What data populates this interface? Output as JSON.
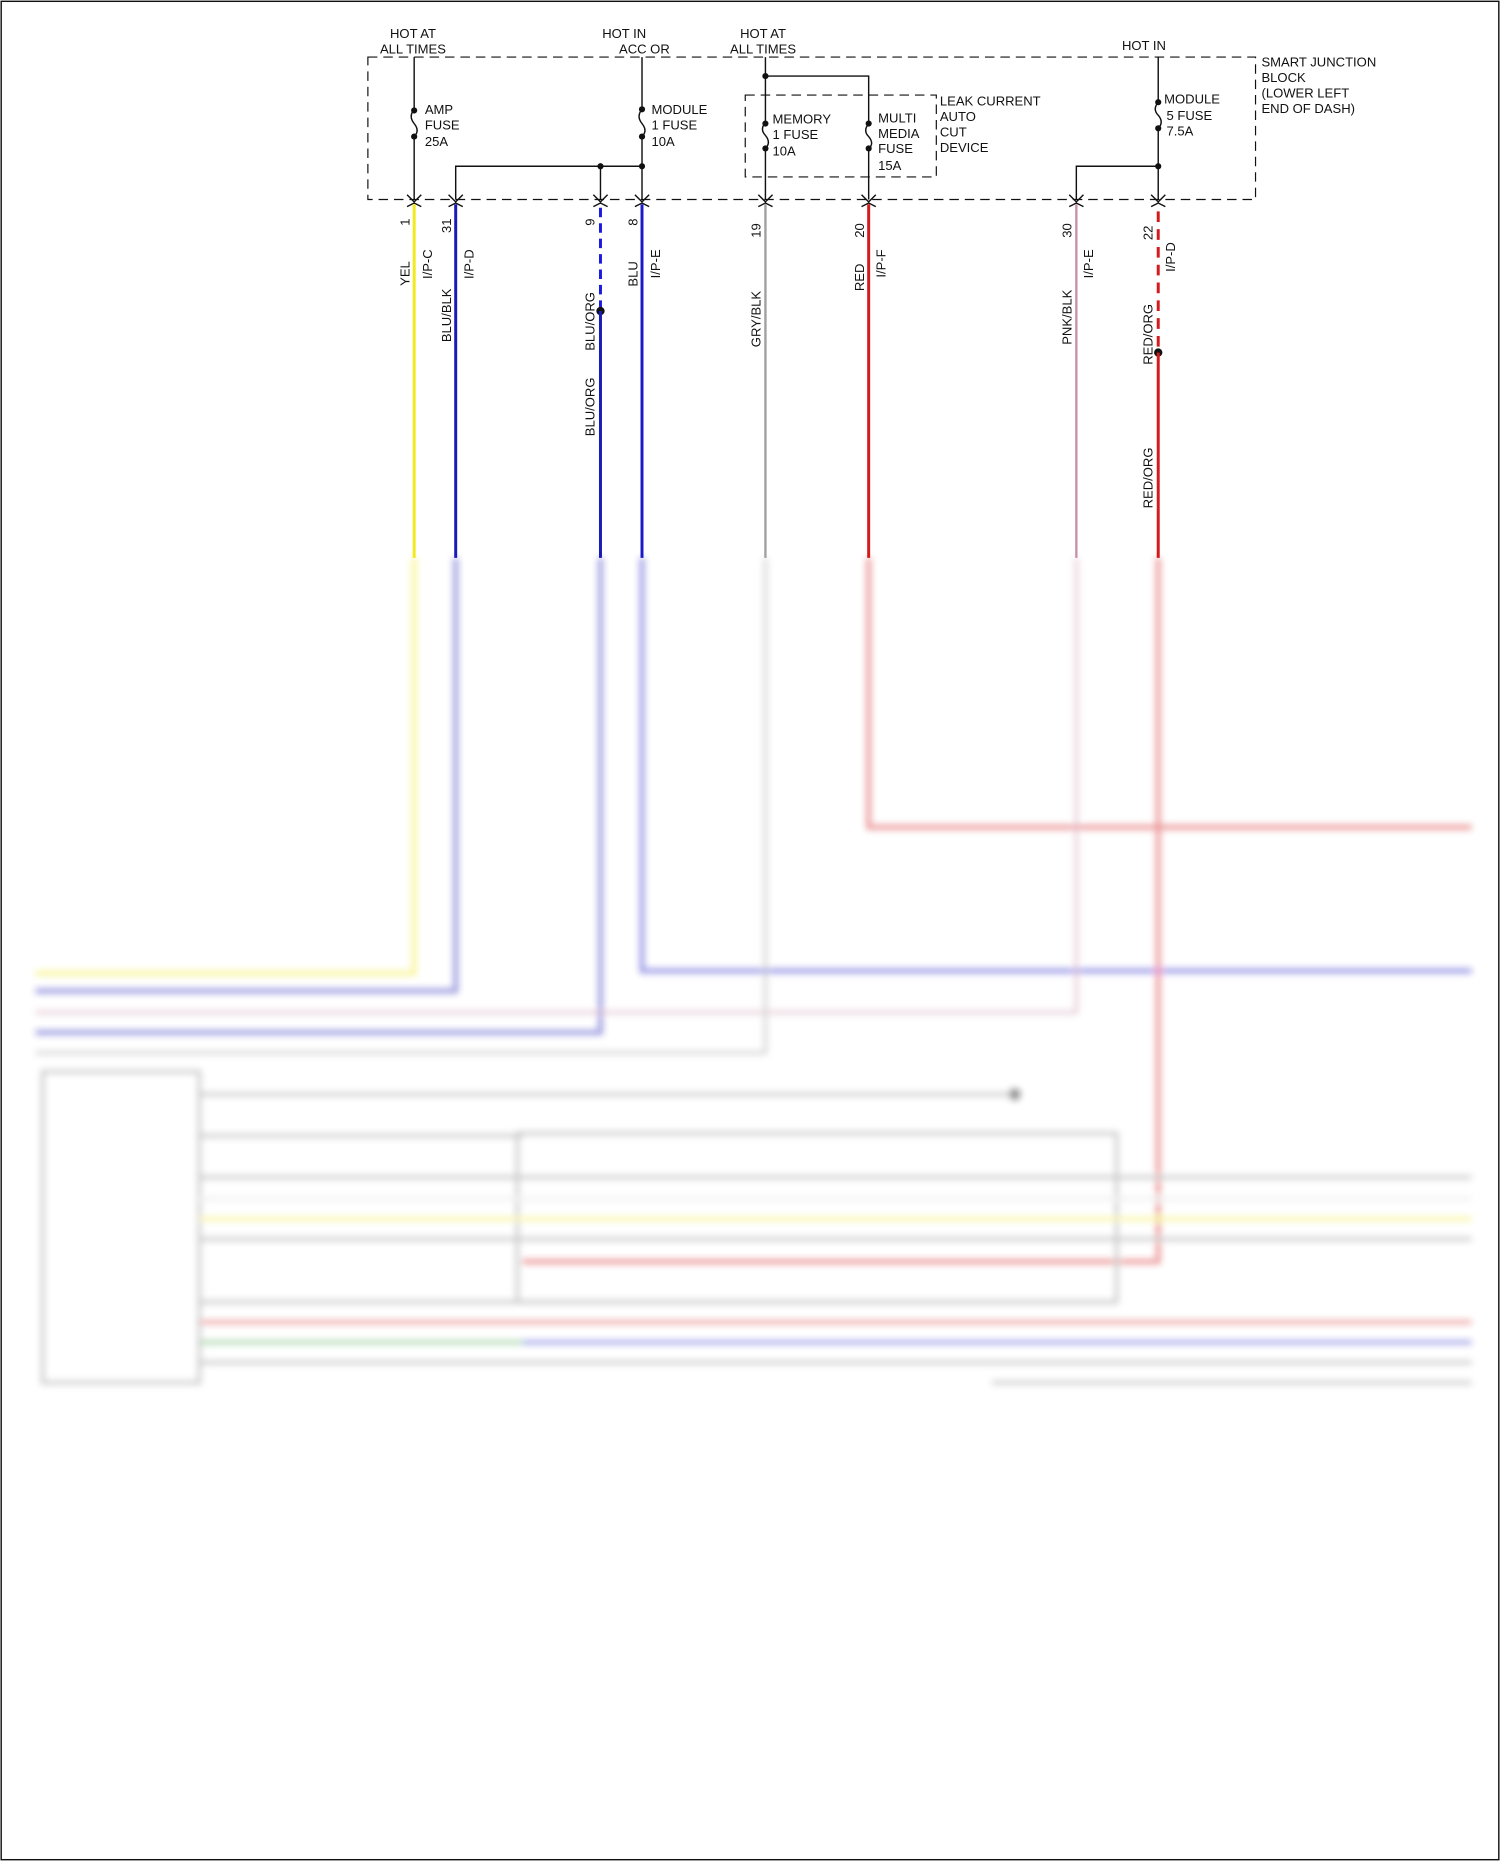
{
  "block": {
    "name_lines": [
      "SMART JUNCTION",
      "BLOCK",
      "(LOWER LEFT",
      "END OF DASH)"
    ]
  },
  "sources": [
    {
      "lines": [
        "HOT AT",
        "ALL TIMES"
      ]
    },
    {
      "lines": [
        "HOT IN",
        "ACC OR"
      ]
    },
    {
      "lines": [
        "HOT AT",
        "ALL TIMES"
      ]
    },
    {
      "lines": [
        "HOT IN"
      ]
    }
  ],
  "fuses": [
    {
      "lines": [
        "AMP",
        "FUSE",
        "25A"
      ]
    },
    {
      "lines": [
        "MODULE",
        "1 FUSE",
        "10A"
      ]
    },
    {
      "lines": [
        "MEMORY",
        "1 FUSE",
        "10A"
      ]
    },
    {
      "lines": [
        "MULTI",
        "MEDIA",
        "FUSE",
        "15A"
      ]
    },
    {
      "lines": [
        "MODULE",
        "5 FUSE",
        "7.5A"
      ]
    }
  ],
  "leak_device": {
    "lines": [
      "LEAK CURRENT",
      "AUTO",
      "CUT",
      "DEVICE"
    ]
  },
  "wires": [
    {
      "pin": "1",
      "color_code": "YEL",
      "connector": "I/P-C",
      "color": "#f2ea1c"
    },
    {
      "pin": "31",
      "color_code": "BLU/BLK",
      "connector": "I/P-D",
      "color": "#1a1ab8"
    },
    {
      "pin": "9",
      "color_code": "BLU/ORG",
      "connector": "",
      "color": "#1a1ae0",
      "splice_label": "BLU/ORG"
    },
    {
      "pin": "8",
      "color_code": "BLU",
      "connector": "I/P-E",
      "color": "#1a1ac8"
    },
    {
      "pin": "19",
      "color_code": "GRY/BLK",
      "connector": "",
      "color": "#a0a0a0"
    },
    {
      "pin": "20",
      "color_code": "RED",
      "connector": "I/P-F",
      "color": "#d41a1a"
    },
    {
      "pin": "30",
      "color_code": "PNK/BLK",
      "connector": "I/P-E",
      "color": "#c890a8"
    },
    {
      "pin": "22",
      "color_code": "RED/ORG",
      "connector": "I/P-D",
      "color": "#d41a1a",
      "splice_label": "RED/ORG"
    }
  ]
}
